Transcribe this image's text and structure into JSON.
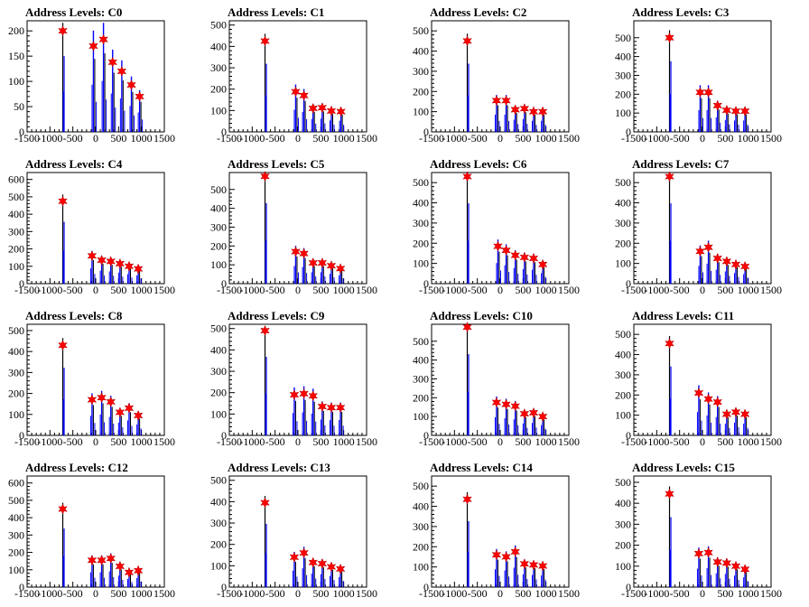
{
  "chart_data": [
    {
      "type": "bar",
      "title": "Address Levels: C0",
      "xlim": [
        -1500,
        1500
      ],
      "ylim": [
        0,
        220
      ],
      "yticks": [
        0,
        50,
        100,
        150,
        200
      ],
      "xticks": [
        -1500,
        -1000,
        -500,
        0,
        500,
        1000,
        1500
      ],
      "series": [
        {
          "values": [
            [
              -720,
              200
            ],
            [
              -50,
              170
            ],
            [
              170,
              183
            ],
            [
              370,
              138
            ],
            [
              570,
              120
            ],
            [
              780,
              93
            ],
            [
              960,
              70
            ]
          ]
        }
      ]
    },
    {
      "type": "bar",
      "title": "Address Levels: C1",
      "xlim": [
        -1500,
        1500
      ],
      "ylim": [
        0,
        520
      ],
      "yticks": [
        0,
        100,
        200,
        300,
        400,
        500
      ],
      "xticks": [
        -1500,
        -1000,
        -500,
        0,
        500,
        1000,
        1500
      ],
      "series": [
        {
          "values": [
            [
              -720,
              425
            ],
            [
              -50,
              188
            ],
            [
              130,
              170
            ],
            [
              330,
              110
            ],
            [
              530,
              113
            ],
            [
              730,
              98
            ],
            [
              940,
              95
            ]
          ]
        }
      ]
    },
    {
      "type": "bar",
      "title": "Address Levels: C2",
      "xlim": [
        -1500,
        1500
      ],
      "ylim": [
        0,
        550
      ],
      "yticks": [
        0,
        100,
        200,
        300,
        400,
        500
      ],
      "xticks": [
        -1500,
        -1000,
        -500,
        0,
        500,
        1000,
        1500
      ],
      "series": [
        {
          "values": [
            [
              -720,
              450
            ],
            [
              -80,
              155
            ],
            [
              130,
              155
            ],
            [
              330,
              110
            ],
            [
              530,
              115
            ],
            [
              730,
              100
            ],
            [
              930,
              100
            ]
          ]
        }
      ]
    },
    {
      "type": "bar",
      "title": "Address Levels: C3",
      "xlim": [
        -1500,
        1500
      ],
      "ylim": [
        0,
        590
      ],
      "yticks": [
        0,
        100,
        200,
        300,
        400,
        500
      ],
      "xticks": [
        -1500,
        -1000,
        -500,
        0,
        500,
        1000,
        1500
      ],
      "series": [
        {
          "values": [
            [
              -720,
              500
            ],
            [
              -50,
              210
            ],
            [
              130,
              210
            ],
            [
              330,
              140
            ],
            [
              530,
              115
            ],
            [
              730,
              110
            ],
            [
              930,
              110
            ]
          ]
        }
      ]
    },
    {
      "type": "bar",
      "title": "Address Levels: C4",
      "xlim": [
        -1500,
        1500
      ],
      "ylim": [
        0,
        640
      ],
      "yticks": [
        0,
        100,
        200,
        300,
        400,
        500,
        600
      ],
      "xticks": [
        -1500,
        -1000,
        -500,
        0,
        500,
        1000,
        1500
      ],
      "series": [
        {
          "values": [
            [
              -720,
              475
            ],
            [
              -80,
              160
            ],
            [
              130,
              135
            ],
            [
              330,
              128
            ],
            [
              530,
              115
            ],
            [
              730,
              100
            ],
            [
              930,
              85
            ]
          ]
        }
      ]
    },
    {
      "type": "bar",
      "title": "Address Levels: C5",
      "xlim": [
        -1500,
        1500
      ],
      "ylim": [
        0,
        590
      ],
      "yticks": [
        0,
        100,
        200,
        300,
        400,
        500
      ],
      "xticks": [
        -1500,
        -1000,
        -500,
        0,
        500,
        1000,
        1500
      ],
      "series": [
        {
          "values": [
            [
              -720,
              570
            ],
            [
              -50,
              170
            ],
            [
              130,
              160
            ],
            [
              330,
              110
            ],
            [
              530,
              110
            ],
            [
              730,
              95
            ],
            [
              930,
              80
            ]
          ]
        }
      ]
    },
    {
      "type": "bar",
      "title": "Address Levels: C6",
      "xlim": [
        -1500,
        1500
      ],
      "ylim": [
        0,
        550
      ],
      "yticks": [
        0,
        100,
        200,
        300,
        400,
        500
      ],
      "xticks": [
        -1500,
        -1000,
        -500,
        0,
        500,
        1000,
        1500
      ],
      "series": [
        {
          "values": [
            [
              -720,
              530
            ],
            [
              -50,
              185
            ],
            [
              130,
              165
            ],
            [
              330,
              140
            ],
            [
              530,
              130
            ],
            [
              730,
              125
            ],
            [
              930,
              95
            ]
          ]
        }
      ]
    },
    {
      "type": "bar",
      "title": "Address Levels: C7",
      "xlim": [
        -1500,
        1500
      ],
      "ylim": [
        0,
        550
      ],
      "yticks": [
        0,
        100,
        200,
        300,
        400,
        500
      ],
      "xticks": [
        -1500,
        -1000,
        -500,
        0,
        500,
        1000,
        1500
      ],
      "series": [
        {
          "values": [
            [
              -720,
              530
            ],
            [
              -50,
              160
            ],
            [
              130,
              180
            ],
            [
              330,
              125
            ],
            [
              530,
              110
            ],
            [
              730,
              95
            ],
            [
              930,
              85
            ]
          ]
        }
      ]
    },
    {
      "type": "bar",
      "title": "Address Levels: C8",
      "xlim": [
        -1500,
        1500
      ],
      "ylim": [
        0,
        530
      ],
      "yticks": [
        0,
        100,
        200,
        300,
        400,
        500
      ],
      "xticks": [
        -1500,
        -1000,
        -500,
        0,
        500,
        1000,
        1500
      ],
      "series": [
        {
          "values": [
            [
              -720,
              430
            ],
            [
              -80,
              170
            ],
            [
              130,
              180
            ],
            [
              330,
              160
            ],
            [
              530,
              110
            ],
            [
              730,
              130
            ],
            [
              930,
              95
            ]
          ]
        }
      ]
    },
    {
      "type": "bar",
      "title": "Address Levels: C9",
      "xlim": [
        -1500,
        1500
      ],
      "ylim": [
        0,
        520
      ],
      "yticks": [
        0,
        100,
        200,
        300,
        400,
        500
      ],
      "xticks": [
        -1500,
        -1000,
        -500,
        0,
        500,
        1000,
        1500
      ],
      "series": [
        {
          "values": [
            [
              -720,
              490
            ],
            [
              -80,
              190
            ],
            [
              130,
              195
            ],
            [
              330,
              185
            ],
            [
              530,
              135
            ],
            [
              730,
              130
            ],
            [
              930,
              130
            ]
          ]
        }
      ]
    },
    {
      "type": "bar",
      "title": "Address Levels: C10",
      "xlim": [
        -1500,
        1500
      ],
      "ylim": [
        0,
        590
      ],
      "yticks": [
        0,
        100,
        200,
        300,
        400,
        500
      ],
      "xticks": [
        -1500,
        -1000,
        -500,
        0,
        500,
        1000,
        1500
      ],
      "series": [
        {
          "values": [
            [
              -720,
              575
            ],
            [
              -80,
              175
            ],
            [
              130,
              165
            ],
            [
              330,
              155
            ],
            [
              530,
              115
            ],
            [
              730,
              120
            ],
            [
              930,
              100
            ]
          ]
        }
      ]
    },
    {
      "type": "bar",
      "title": "Address Levels: C11",
      "xlim": [
        -1500,
        1500
      ],
      "ylim": [
        0,
        550
      ],
      "yticks": [
        0,
        100,
        200,
        300,
        400,
        500
      ],
      "xticks": [
        -1500,
        -1000,
        -500,
        0,
        500,
        1000,
        1500
      ],
      "series": [
        {
          "values": [
            [
              -720,
              455
            ],
            [
              -80,
              210
            ],
            [
              130,
              180
            ],
            [
              330,
              165
            ],
            [
              530,
              105
            ],
            [
              730,
              115
            ],
            [
              930,
              105
            ]
          ]
        }
      ]
    },
    {
      "type": "bar",
      "title": "Address Levels: C12",
      "xlim": [
        -1500,
        1500
      ],
      "ylim": [
        0,
        640
      ],
      "yticks": [
        0,
        100,
        200,
        300,
        400,
        500,
        600
      ],
      "xticks": [
        -1500,
        -1000,
        -500,
        0,
        500,
        1000,
        1500
      ],
      "series": [
        {
          "values": [
            [
              -720,
              450
            ],
            [
              -80,
              155
            ],
            [
              130,
              155
            ],
            [
              330,
              165
            ],
            [
              530,
              120
            ],
            [
              730,
              85
            ],
            [
              930,
              95
            ]
          ]
        }
      ]
    },
    {
      "type": "bar",
      "title": "Address Levels: C13",
      "xlim": [
        -1500,
        1500
      ],
      "ylim": [
        0,
        520
      ],
      "yticks": [
        0,
        100,
        200,
        300,
        400,
        500
      ],
      "xticks": [
        -1500,
        -1000,
        -500,
        0,
        500,
        1000,
        1500
      ],
      "series": [
        {
          "values": [
            [
              -720,
              395
            ],
            [
              -80,
              140
            ],
            [
              130,
              160
            ],
            [
              330,
              115
            ],
            [
              530,
              110
            ],
            [
              730,
              95
            ],
            [
              930,
              85
            ]
          ]
        }
      ]
    },
    {
      "type": "bar",
      "title": "Address Levels: C14",
      "xlim": [
        -1500,
        1500
      ],
      "ylim": [
        0,
        550
      ],
      "yticks": [
        0,
        100,
        200,
        300,
        400,
        500
      ],
      "xticks": [
        -1500,
        -1000,
        -500,
        0,
        500,
        1000,
        1500
      ],
      "series": [
        {
          "values": [
            [
              -720,
              435
            ],
            [
              -80,
              160
            ],
            [
              130,
              150
            ],
            [
              330,
              175
            ],
            [
              530,
              115
            ],
            [
              730,
              110
            ],
            [
              930,
              105
            ]
          ]
        }
      ]
    },
    {
      "type": "bar",
      "title": "Address Levels: C15",
      "xlim": [
        -1500,
        1500
      ],
      "ylim": [
        0,
        530
      ],
      "yticks": [
        0,
        100,
        200,
        300,
        400,
        500
      ],
      "xticks": [
        -1500,
        -1000,
        -500,
        0,
        500,
        1000,
        1500
      ],
      "series": [
        {
          "values": [
            [
              -720,
              445
            ],
            [
              -80,
              160
            ],
            [
              130,
              165
            ],
            [
              330,
              120
            ],
            [
              530,
              115
            ],
            [
              730,
              100
            ],
            [
              930,
              85
            ]
          ]
        }
      ]
    }
  ],
  "colors": {
    "bar": "#0000ff",
    "spike": "#000000",
    "marker": "#ff0000"
  }
}
